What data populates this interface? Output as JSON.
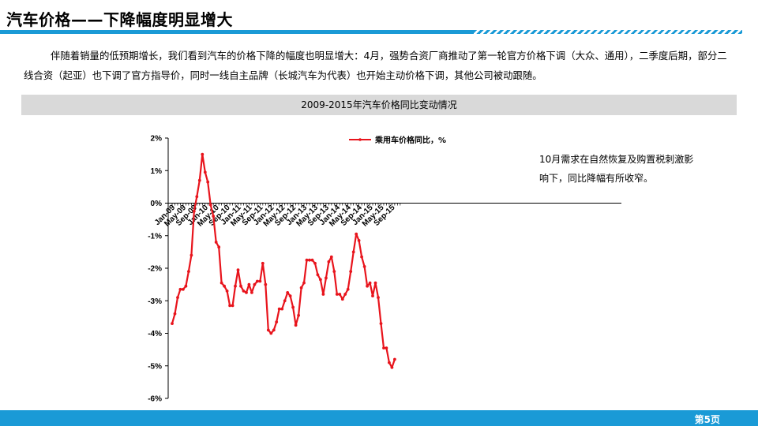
{
  "slide": {
    "title": "汽车价格——下降幅度明显增大",
    "body": "伴随着销量的低预期增长，我们看到汽车的价格下降的幅度也明显增大：4月，强势合资厂商推动了第一轮官方价格下调（大众、通用），二季度后期，部分二线合资（起亚）也下调了官方指导价，同时一线自主品牌（长城汽车为代表）也开始主动价格下调，其他公司被动跟随。",
    "chart_header": "2009-2015年汽车价格同比变动情况",
    "annotation": "10月需求在自然恢复及购置税刺激影响下，同比降幅有所收窄。",
    "page_number": "第5页"
  },
  "colors": {
    "accent": "#1a9ad6",
    "series": "#e8141c",
    "header_bg": "#d9d9d9"
  },
  "chart_data": {
    "type": "line",
    "title": "",
    "xlabel": "",
    "ylabel": "",
    "ylim": [
      -6,
      2
    ],
    "yticks": [
      "2%",
      "1%",
      "0%",
      "-1%",
      "-2%",
      "-3%",
      "-4%",
      "-5%",
      "-6%"
    ],
    "xticks": [
      "Jan-09",
      "May-09",
      "Sep-09",
      "Jan-10",
      "May-10",
      "Sep-10",
      "Jan-11",
      "May-11",
      "Sep-11",
      "Jan-12",
      "May-12",
      "Sep-12",
      "Jan-13",
      "May-13",
      "Sep-13",
      "Jan-14",
      "May-14",
      "Sep-14",
      "Jan-15",
      "May-15",
      "Sep-15"
    ],
    "series": [
      {
        "name": "乘用车价格同比，%",
        "start": "Jan-09",
        "values": [
          -3.7,
          -3.4,
          -2.9,
          -2.65,
          -2.65,
          -2.55,
          -2.1,
          -1.6,
          -0.25,
          0.2,
          0.7,
          1.5,
          0.95,
          0.65,
          -0.05,
          -0.4,
          -1.2,
          -1.35,
          -2.45,
          -2.55,
          -2.7,
          -3.15,
          -3.15,
          -2.55,
          -2.05,
          -2.55,
          -2.7,
          -2.75,
          -2.5,
          -2.75,
          -2.5,
          -2.4,
          -2.4,
          -1.85,
          -2.5,
          -3.9,
          -4.0,
          -3.9,
          -3.65,
          -3.25,
          -3.25,
          -3.0,
          -2.75,
          -2.85,
          -3.2,
          -3.75,
          -3.45,
          -2.6,
          -2.45,
          -1.75,
          -1.75,
          -1.75,
          -1.85,
          -2.2,
          -2.35,
          -2.8,
          -2.3,
          -1.8,
          -1.65,
          -2.1,
          -2.8,
          -2.8,
          -2.95,
          -2.8,
          -2.65,
          -2.1,
          -1.5,
          -0.95,
          -1.15,
          -1.65,
          -1.95,
          -2.55,
          -2.45,
          -2.85,
          -2.45,
          -2.9,
          -3.7,
          -4.45,
          -4.45,
          -4.9,
          -5.05,
          -4.8
        ]
      }
    ],
    "legend": "top",
    "grid": false
  }
}
